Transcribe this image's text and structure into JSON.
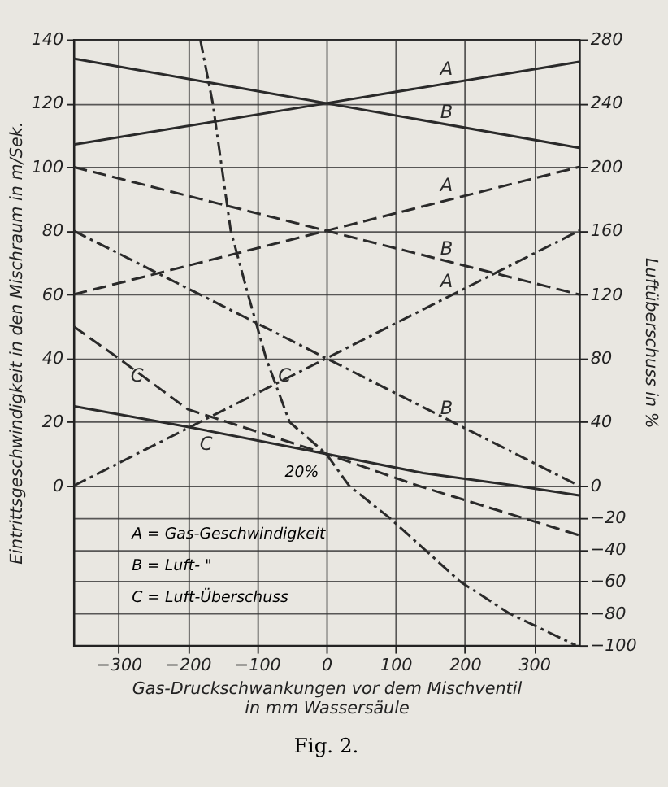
{
  "chart_data": {
    "type": "line",
    "xlabel": [
      "Gas-Druckschwankungen vor dem Mischventil",
      "in mm Wassersäule"
    ],
    "ylabel": "Eintrittsgeschwindigkeit in den Mischraum in m/Sek.",
    "y2label": "Luftüberschuss in %",
    "xlim": [
      -365,
      365
    ],
    "xticks": [
      -300,
      -200,
      -100,
      0,
      100,
      200,
      300
    ],
    "ylim": [
      -50,
      140
    ],
    "yticks": [
      0,
      20,
      40,
      60,
      80,
      100,
      120,
      140
    ],
    "y2lim": [
      -100,
      280
    ],
    "y2ticks": [
      -100,
      -80,
      -60,
      -40,
      -20,
      0,
      40,
      80,
      120,
      160,
      200,
      240,
      280
    ],
    "grid": true,
    "series": [
      {
        "name": "A",
        "color": "#2a2a2a",
        "line_style": "solid",
        "x": [
          -365,
          0,
          365
        ],
        "values": [
          107,
          120,
          133
        ]
      },
      {
        "name": "B",
        "color": "#2a2a2a",
        "line_style": "solid",
        "x": [
          -365,
          0,
          365
        ],
        "values": [
          134,
          120,
          106
        ]
      },
      {
        "name": "A",
        "color": "#2a2a2a",
        "line_style": "dashed",
        "x": [
          -365,
          0,
          365
        ],
        "values": [
          60,
          80,
          100
        ]
      },
      {
        "name": "B",
        "color": "#2a2a2a",
        "line_style": "dashed",
        "x": [
          -365,
          0,
          365
        ],
        "values": [
          100,
          80,
          60
        ]
      },
      {
        "name": "A",
        "color": "#2a2a2a",
        "line_style": "dashdot",
        "x": [
          -365,
          0,
          365
        ],
        "values": [
          0,
          40,
          80
        ]
      },
      {
        "name": "B",
        "color": "#2a2a2a",
        "line_style": "dashdot",
        "x": [
          -365,
          0,
          365
        ],
        "values": [
          80,
          40,
          0
        ]
      },
      {
        "name": "C",
        "color": "#2a2a2a",
        "line_style": "solid",
        "axis": "y2",
        "x": [
          -365,
          -200,
          0,
          140,
          275,
          365
        ],
        "values": [
          50,
          37,
          20,
          8,
          0,
          -6
        ]
      },
      {
        "name": "C",
        "color": "#2a2a2a",
        "line_style": "dashed",
        "axis": "y2",
        "x": [
          -365,
          -300,
          -200,
          0,
          133,
          365
        ],
        "values": [
          100,
          80,
          48,
          20,
          0,
          -31
        ]
      },
      {
        "name": "C",
        "color": "#2a2a2a",
        "line_style": "dashdot",
        "axis": "y2",
        "x": [
          -182,
          -164,
          -151,
          -138,
          -113,
          -87,
          -53,
          0,
          33,
          91,
          142,
          193,
          264,
          360
        ],
        "values": [
          280,
          240,
          200,
          160,
          120,
          80,
          40,
          20,
          0,
          -20,
          -40,
          -60,
          -80,
          -100
        ]
      }
    ],
    "annotations": [
      {
        "text": "20%",
        "x": 0,
        "y": 10
      },
      "A = Gas-Geschwindigkeit",
      "B = Luft-      \"",
      "C = Luft-Überschuss",
      "Fig. 2."
    ]
  }
}
